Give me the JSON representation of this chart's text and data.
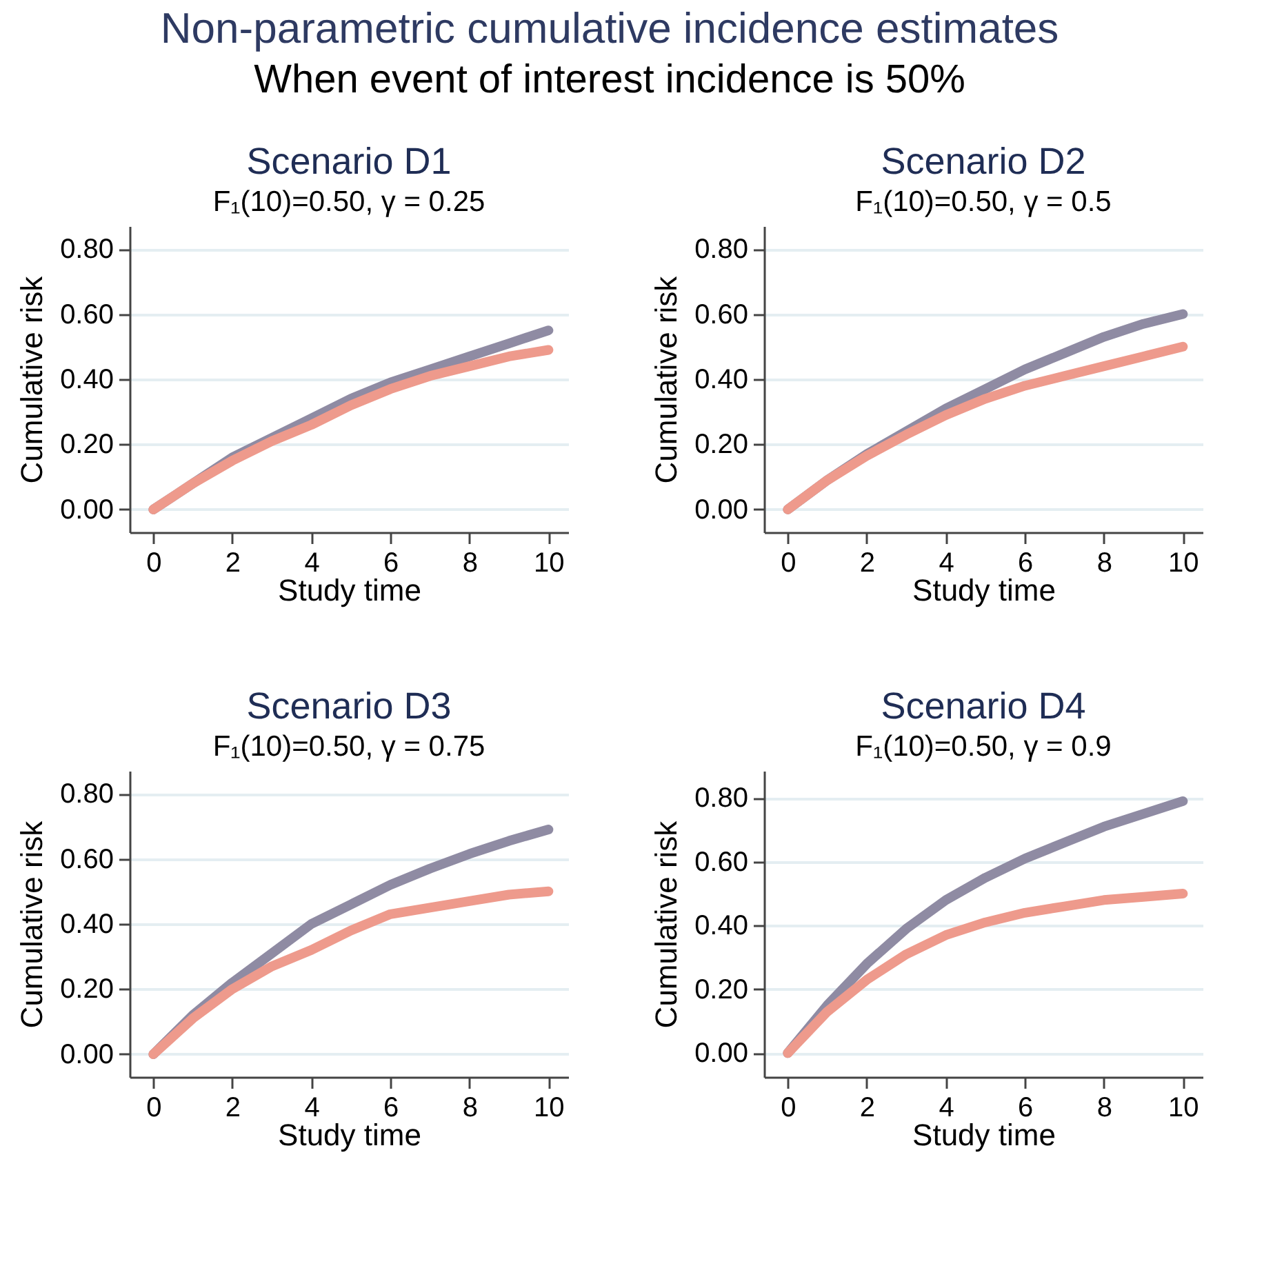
{
  "chart_data": [
    {
      "type": "other",
      "title": "Non-parametric cumulative incidence estimates",
      "subtitle": "When event of interest incidence is 50%"
    },
    {
      "type": "line",
      "title": "Scenario D1",
      "subtitle": "F₁(10)=0.50, γ = 0.25",
      "xlabel": "Study time",
      "ylabel": "Cumulative risk",
      "x": [
        0,
        1,
        2,
        3,
        4,
        5,
        6,
        7,
        8,
        9,
        10
      ],
      "xlim": [
        -0.6,
        10.5
      ],
      "xticks": [
        0,
        2,
        4,
        6,
        8,
        10
      ],
      "ylim": [
        -0.07,
        0.87
      ],
      "yticks": [
        {
          "value": 0,
          "label": "0.00"
        },
        {
          "value": 0.2,
          "label": "0.20"
        },
        {
          "value": 0.4,
          "label": "0.40"
        },
        {
          "value": 0.6,
          "label": "0.60"
        },
        {
          "value": 0.8,
          "label": "0.80"
        }
      ],
      "grid": "y",
      "line_style": "solid",
      "series": [
        {
          "color": "#8f8ba3",
          "values": [
            0,
            0.08,
            0.16,
            0.22,
            0.28,
            0.34,
            0.39,
            0.43,
            0.47,
            0.51,
            0.55
          ]
        },
        {
          "color": "#ee9a8c",
          "values": [
            0,
            0.08,
            0.15,
            0.21,
            0.26,
            0.32,
            0.37,
            0.41,
            0.44,
            0.47,
            0.49
          ]
        }
      ]
    },
    {
      "type": "line",
      "title": "Scenario D2",
      "subtitle": "F₁(10)=0.50, γ = 0.5",
      "xlabel": "Study time",
      "ylabel": "Cumulative risk",
      "x": [
        0,
        1,
        2,
        3,
        4,
        5,
        6,
        7,
        8,
        9,
        10
      ],
      "xlim": [
        -0.6,
        10.5
      ],
      "xticks": [
        0,
        2,
        4,
        6,
        8,
        10
      ],
      "ylim": [
        -0.07,
        0.87
      ],
      "yticks": [
        {
          "value": 0,
          "label": "0.00"
        },
        {
          "value": 0.2,
          "label": "0.20"
        },
        {
          "value": 0.4,
          "label": "0.40"
        },
        {
          "value": 0.6,
          "label": "0.60"
        },
        {
          "value": 0.8,
          "label": "0.80"
        }
      ],
      "grid": "y",
      "line_style": "solid",
      "series": [
        {
          "color": "#8f8ba3",
          "values": [
            0,
            0.09,
            0.17,
            0.24,
            0.31,
            0.37,
            0.43,
            0.48,
            0.53,
            0.57,
            0.6
          ]
        },
        {
          "color": "#ee9a8c",
          "values": [
            0,
            0.09,
            0.165,
            0.23,
            0.29,
            0.34,
            0.38,
            0.41,
            0.44,
            0.47,
            0.5
          ]
        }
      ]
    },
    {
      "type": "line",
      "title": "Scenario D3",
      "subtitle": "F₁(10)=0.50, γ = 0.75",
      "xlabel": "Study time",
      "ylabel": "Cumulative risk",
      "x": [
        0,
        1,
        2,
        3,
        4,
        5,
        6,
        7,
        8,
        9,
        10
      ],
      "xlim": [
        -0.6,
        10.5
      ],
      "xticks": [
        0,
        2,
        4,
        6,
        8,
        10
      ],
      "ylim": [
        -0.07,
        0.87
      ],
      "yticks": [
        {
          "value": 0,
          "label": "0.00"
        },
        {
          "value": 0.2,
          "label": "0.20"
        },
        {
          "value": 0.4,
          "label": "0.40"
        },
        {
          "value": 0.6,
          "label": "0.60"
        },
        {
          "value": 0.8,
          "label": "0.80"
        }
      ],
      "grid": "y",
      "line_style": "solid",
      "series": [
        {
          "color": "#8f8ba3",
          "values": [
            0,
            0.12,
            0.22,
            0.31,
            0.4,
            0.46,
            0.52,
            0.57,
            0.615,
            0.655,
            0.69
          ]
        },
        {
          "color": "#ee9a8c",
          "values": [
            0,
            0.11,
            0.2,
            0.27,
            0.32,
            0.38,
            0.43,
            0.45,
            0.47,
            0.49,
            0.5
          ]
        }
      ]
    },
    {
      "type": "line",
      "title": "Scenario D4",
      "subtitle": "F₁(10)=0.50, γ = 0.9",
      "xlabel": "Study time",
      "ylabel": "Cumulative risk",
      "x": [
        0,
        1,
        2,
        3,
        4,
        5,
        6,
        7,
        8,
        9,
        10
      ],
      "xlim": [
        -0.6,
        10.5
      ],
      "xticks": [
        0,
        2,
        4,
        6,
        8,
        10
      ],
      "ylim": [
        -0.075,
        0.885
      ],
      "yticks": [
        {
          "value": 0,
          "label": "0.00"
        },
        {
          "value": 0.2,
          "label": "0.20"
        },
        {
          "value": 0.4,
          "label": "0.40"
        },
        {
          "value": 0.6,
          "label": "0.60"
        },
        {
          "value": 0.8,
          "label": "0.80"
        }
      ],
      "grid": "y",
      "line_style": "solid",
      "series": [
        {
          "color": "#8f8ba3",
          "values": [
            0,
            0.15,
            0.28,
            0.39,
            0.48,
            0.55,
            0.61,
            0.66,
            0.71,
            0.75,
            0.79
          ]
        },
        {
          "color": "#ee9a8c",
          "values": [
            0,
            0.13,
            0.23,
            0.31,
            0.37,
            0.41,
            0.44,
            0.46,
            0.48,
            0.49,
            0.5
          ]
        }
      ]
    }
  ]
}
